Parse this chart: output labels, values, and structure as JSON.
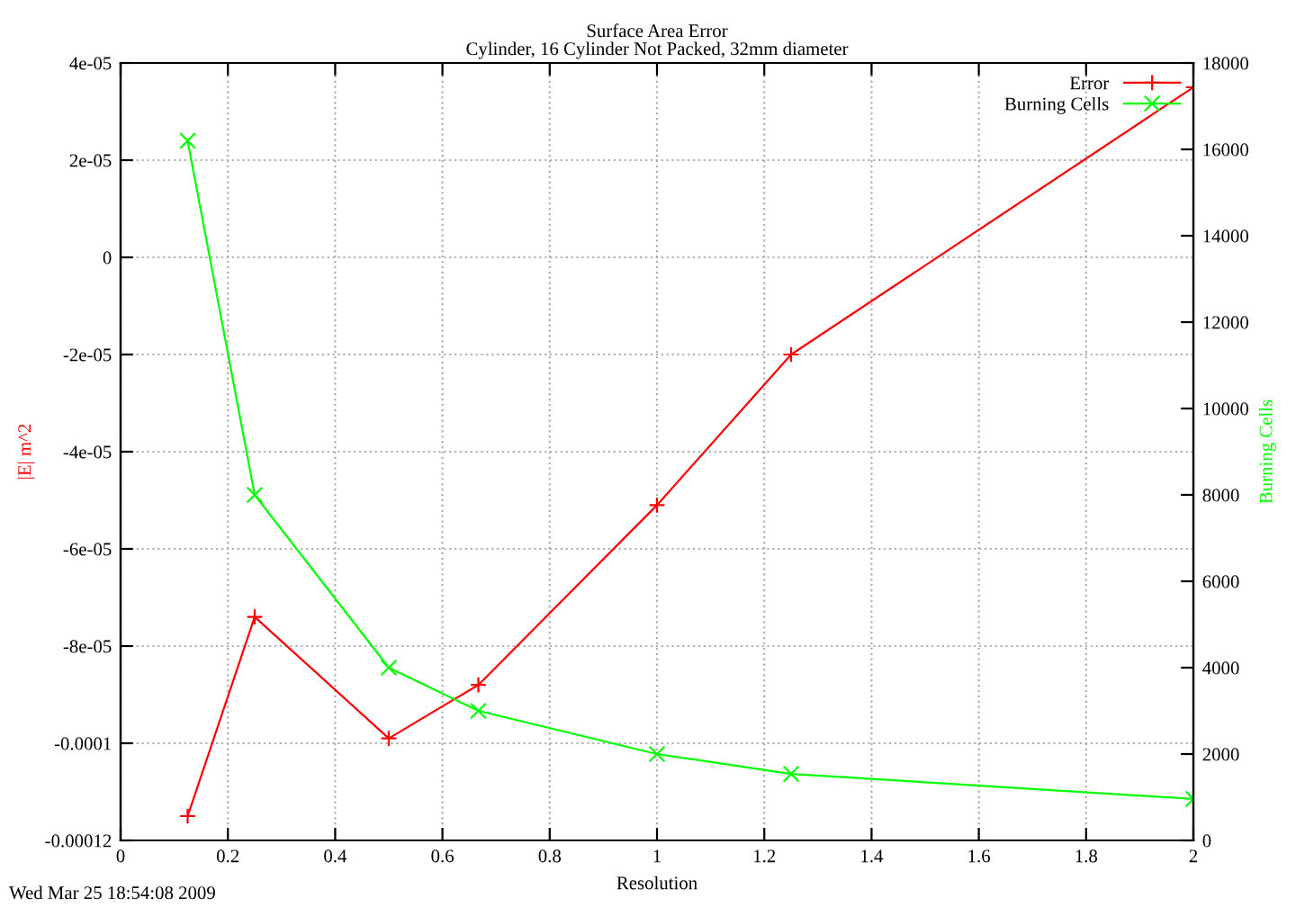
{
  "chart_data": {
    "type": "line",
    "title": "Surface Area Error",
    "subtitle": "Cylinder, 16 Cylinder Not Packed, 32mm diameter",
    "xlabel": "Resolution",
    "ylabel": "|E| m^2",
    "y2label": "Burning Cells",
    "annotations": [
      "Wed Mar 25 18:54:08 2009"
    ],
    "series": [
      {
        "name": "Error",
        "color": "#ff0000",
        "marker": "plus",
        "x": [
          0.125,
          0.25,
          0.5,
          0.667,
          1,
          1.25,
          2
        ],
        "values": [
          -0.000115,
          -7.4e-05,
          -9.9e-05,
          -8.8e-05,
          -5.1e-05,
          -2e-05,
          3.5e-05
        ]
      },
      {
        "name": "Burning Cells",
        "color": "#00ff00",
        "marker": "cross",
        "axis": "y2",
        "x": [
          0.125,
          0.25,
          0.5,
          0.667,
          1,
          1.25,
          2
        ],
        "values": [
          16200,
          8000,
          4000,
          3000,
          2000,
          1540,
          960
        ]
      }
    ],
    "xlim": [
      0,
      2
    ],
    "xticks": [
      0,
      0.2,
      0.4,
      0.6,
      0.8,
      1,
      1.2,
      1.4,
      1.6,
      1.8,
      2
    ],
    "ylim": [
      -0.00012,
      4e-05
    ],
    "yticks": [
      {
        "value": -0.00012,
        "label": "-0.00012"
      },
      {
        "value": -0.0001,
        "label": "-0.0001"
      },
      {
        "value": -8e-05,
        "label": "-8e-05"
      },
      {
        "value": -6e-05,
        "label": "-6e-05"
      },
      {
        "value": -4e-05,
        "label": "-4e-05"
      },
      {
        "value": -2e-05,
        "label": "-2e-05"
      },
      0,
      {
        "value": 2e-05,
        "label": "2e-05"
      },
      {
        "value": 4e-05,
        "label": "4e-05"
      }
    ],
    "y2lim": [
      0,
      18000
    ],
    "y2ticks": [
      0,
      2000,
      4000,
      6000,
      8000,
      10000,
      12000,
      14000,
      16000,
      18000
    ],
    "grid": true,
    "legend": "top right"
  }
}
